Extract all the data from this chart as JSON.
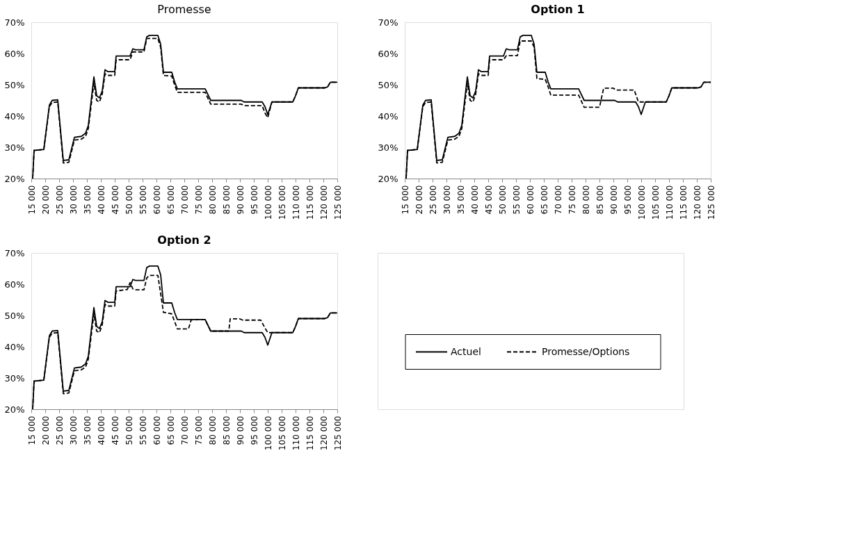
{
  "chart_data": [
    {
      "type": "line",
      "title": "Promesse",
      "marker": "none",
      "grid": false,
      "xlim": [
        15000,
        125000
      ],
      "xticks": [
        {
          "value": 15000,
          "label": "15 000"
        },
        {
          "value": 20000,
          "label": "20 000"
        },
        {
          "value": 25000,
          "label": "25 000"
        },
        {
          "value": 30000,
          "label": "30 000"
        },
        {
          "value": 35000,
          "label": "35 000"
        },
        {
          "value": 40000,
          "label": "40 000"
        },
        {
          "value": 45000,
          "label": "45 000"
        },
        {
          "value": 50000,
          "label": "50 000"
        },
        {
          "value": 55000,
          "label": "55 000"
        },
        {
          "value": 60000,
          "label": "60 000"
        },
        {
          "value": 65000,
          "label": "65 000"
        },
        {
          "value": 70000,
          "label": "70 000"
        },
        {
          "value": 75000,
          "label": "75 000"
        },
        {
          "value": 80000,
          "label": "80 000"
        },
        {
          "value": 85000,
          "label": "85 000"
        },
        {
          "value": 90000,
          "label": "90 000"
        },
        {
          "value": 95000,
          "label": "95 000"
        },
        {
          "value": 100000,
          "label": "100 000"
        },
        {
          "value": 105000,
          "label": "105 000"
        },
        {
          "value": 110000,
          "label": "110 000"
        },
        {
          "value": 115000,
          "label": "115 000"
        },
        {
          "value": 120000,
          "label": "120 000"
        },
        {
          "value": 125000,
          "label": "125 000"
        }
      ],
      "ylim": [
        20,
        70
      ],
      "yticks": [
        {
          "value": 20,
          "label": "20%"
        },
        {
          "value": 30,
          "label": "30%"
        },
        {
          "value": 40,
          "label": "40%"
        },
        {
          "value": 50,
          "label": "50%"
        },
        {
          "value": 60,
          "label": "60%"
        },
        {
          "value": 70,
          "label": "70%"
        }
      ],
      "series": [
        {
          "color": "#000000",
          "line_style": "solid",
          "x": [
            15500,
            16000,
            19500,
            21500,
            22500,
            24500,
            26500,
            28500,
            30500,
            33000,
            34500,
            35500,
            37500,
            38500,
            39500,
            40500,
            41500,
            42500,
            45000,
            45500,
            50500,
            51500,
            52500,
            55500,
            56500,
            57500,
            60500,
            61500,
            62500,
            65500,
            66500,
            67500,
            77500,
            79500,
            90500,
            91500,
            98000,
            99000,
            100000,
            101500,
            109000,
            110000,
            111000,
            120500,
            121500,
            122500,
            125000
          ],
          "values": [
            20,
            29,
            29.3,
            43.5,
            45,
            45.2,
            25.8,
            26,
            33.2,
            33.5,
            34.5,
            37,
            52.5,
            46.5,
            45.8,
            48,
            54.8,
            54.2,
            54.2,
            59.2,
            59.2,
            61.5,
            61.2,
            61.2,
            65.3,
            65.8,
            65.8,
            63,
            54,
            54,
            51,
            48.7,
            48.7,
            45,
            45,
            44.5,
            44.5,
            43,
            40.5,
            44.5,
            44.5,
            46.5,
            49,
            49,
            49.3,
            50.8,
            50.8
          ]
        },
        {
          "color": "#000000",
          "line_style": "dashed",
          "x": [
            15500,
            16000,
            19500,
            21500,
            22500,
            24500,
            26500,
            28500,
            30500,
            33000,
            34500,
            35500,
            37500,
            38500,
            39500,
            40500,
            41500,
            42500,
            45000,
            45500,
            50500,
            51500,
            55500,
            56500,
            60500,
            61500,
            62500,
            65500,
            66500,
            67500,
            77500,
            79500,
            90500,
            91500,
            98000,
            99000,
            100000,
            101500,
            109000,
            110000,
            111000,
            120500,
            121500,
            122500,
            125000
          ],
          "values": [
            20,
            29,
            29.3,
            43,
            44.3,
            44.5,
            25,
            25.2,
            32.3,
            32.6,
            33.5,
            36,
            50.5,
            45,
            44.5,
            47,
            53.5,
            53,
            53,
            58,
            58,
            60.5,
            60.5,
            64.8,
            64.8,
            62,
            53,
            52.8,
            50,
            47.6,
            47.6,
            43.8,
            43.8,
            43.3,
            43.3,
            41,
            39.5,
            44.5,
            44.5,
            46.5,
            49,
            49,
            49.3,
            50.8,
            50.8
          ]
        }
      ]
    },
    {
      "type": "line",
      "title": "Option 1",
      "marker": "none",
      "grid": false,
      "xlim": [
        15000,
        125000
      ],
      "xticks": [
        {
          "value": 15000,
          "label": "15 000"
        },
        {
          "value": 20000,
          "label": "20 000"
        },
        {
          "value": 25000,
          "label": "25 000"
        },
        {
          "value": 30000,
          "label": "30 000"
        },
        {
          "value": 35000,
          "label": "35 000"
        },
        {
          "value": 40000,
          "label": "40 000"
        },
        {
          "value": 45000,
          "label": "45 000"
        },
        {
          "value": 50000,
          "label": "50 000"
        },
        {
          "value": 55000,
          "label": "55 000"
        },
        {
          "value": 60000,
          "label": "60 000"
        },
        {
          "value": 65000,
          "label": "65 000"
        },
        {
          "value": 70000,
          "label": "70 000"
        },
        {
          "value": 75000,
          "label": "75 000"
        },
        {
          "value": 80000,
          "label": "80 000"
        },
        {
          "value": 85000,
          "label": "85 000"
        },
        {
          "value": 90000,
          "label": "90 000"
        },
        {
          "value": 95000,
          "label": "95 000"
        },
        {
          "value": 100000,
          "label": "100 000"
        },
        {
          "value": 105000,
          "label": "105 000"
        },
        {
          "value": 110000,
          "label": "110 000"
        },
        {
          "value": 115000,
          "label": "115 000"
        },
        {
          "value": 120000,
          "label": "120 000"
        },
        {
          "value": 125000,
          "label": "125 000"
        }
      ],
      "ylim": [
        20,
        70
      ],
      "yticks": [
        {
          "value": 20,
          "label": "20%"
        },
        {
          "value": 30,
          "label": "30%"
        },
        {
          "value": 40,
          "label": "40%"
        },
        {
          "value": 50,
          "label": "50%"
        },
        {
          "value": 60,
          "label": "60%"
        },
        {
          "value": 70,
          "label": "70%"
        }
      ],
      "series": [
        {
          "color": "#000000",
          "line_style": "solid",
          "x": [
            15500,
            16000,
            19500,
            21500,
            22500,
            24500,
            26500,
            28500,
            30500,
            33000,
            34500,
            35500,
            37500,
            38500,
            39500,
            40500,
            41500,
            42500,
            45000,
            45500,
            50500,
            51500,
            52500,
            55500,
            56500,
            57500,
            60500,
            61500,
            62500,
            65500,
            66500,
            67500,
            77500,
            79500,
            90500,
            91500,
            98000,
            99000,
            100000,
            101500,
            109000,
            110000,
            111000,
            120500,
            121500,
            122500,
            125000
          ],
          "values": [
            20,
            29,
            29.3,
            43.5,
            45,
            45.2,
            25.8,
            26,
            33.2,
            33.5,
            34.5,
            37,
            52.5,
            46.5,
            45.8,
            48,
            54.8,
            54.2,
            54.2,
            59.2,
            59.2,
            61.5,
            61.2,
            61.2,
            65.3,
            65.8,
            65.8,
            63,
            54,
            54,
            51,
            48.7,
            48.7,
            45,
            45,
            44.5,
            44.5,
            43,
            40.5,
            44.5,
            44.5,
            46.5,
            49,
            49,
            49.3,
            50.8,
            50.8
          ]
        },
        {
          "color": "#000000",
          "line_style": "dashed",
          "x": [
            15500,
            16000,
            19500,
            21500,
            22500,
            24500,
            26500,
            28500,
            30500,
            33000,
            34500,
            35500,
            37500,
            38500,
            39500,
            40500,
            41500,
            42500,
            45000,
            45500,
            50500,
            51500,
            55500,
            56500,
            60500,
            61500,
            62500,
            65500,
            66500,
            67500,
            77500,
            79500,
            85000,
            86500,
            90000,
            91000,
            97500,
            99000,
            101500,
            109000,
            110000,
            111000,
            120500,
            121500,
            122500,
            125000
          ],
          "values": [
            20,
            29,
            29.3,
            43,
            44.3,
            44.5,
            25,
            25.2,
            32.3,
            32.6,
            33.5,
            36,
            50.5,
            45,
            44.5,
            47,
            53.5,
            53,
            53,
            58,
            58,
            59.3,
            59.3,
            64,
            64,
            62,
            52,
            51.7,
            49.5,
            46.7,
            46.7,
            42.8,
            42.8,
            48.9,
            48.9,
            48.3,
            48.3,
            44.5,
            44.5,
            44.5,
            46.5,
            49,
            49,
            49.3,
            50.8,
            50.8
          ]
        }
      ]
    },
    {
      "type": "line",
      "title": "Option 2",
      "legend": "right",
      "marker": "none",
      "grid": false,
      "xlim": [
        15000,
        125000
      ],
      "xticks": [
        {
          "value": 15000,
          "label": "15 000"
        },
        {
          "value": 20000,
          "label": "20 000"
        },
        {
          "value": 25000,
          "label": "25 000"
        },
        {
          "value": 30000,
          "label": "30 000"
        },
        {
          "value": 35000,
          "label": "35 000"
        },
        {
          "value": 40000,
          "label": "40 000"
        },
        {
          "value": 45000,
          "label": "45 000"
        },
        {
          "value": 50000,
          "label": "50 000"
        },
        {
          "value": 55000,
          "label": "55 000"
        },
        {
          "value": 60000,
          "label": "60 000"
        },
        {
          "value": 65000,
          "label": "65 000"
        },
        {
          "value": 70000,
          "label": "70 000"
        },
        {
          "value": 75000,
          "label": "75 000"
        },
        {
          "value": 80000,
          "label": "80 000"
        },
        {
          "value": 85000,
          "label": "85 000"
        },
        {
          "value": 90000,
          "label": "90 000"
        },
        {
          "value": 95000,
          "label": "95 000"
        },
        {
          "value": 100000,
          "label": "100 000"
        },
        {
          "value": 105000,
          "label": "105 000"
        },
        {
          "value": 110000,
          "label": "110 000"
        },
        {
          "value": 115000,
          "label": "115 000"
        },
        {
          "value": 120000,
          "label": "120 000"
        },
        {
          "value": 125000,
          "label": "125 000"
        }
      ],
      "ylim": [
        20,
        70
      ],
      "yticks": [
        {
          "value": 20,
          "label": "20%"
        },
        {
          "value": 30,
          "label": "30%"
        },
        {
          "value": 40,
          "label": "40%"
        },
        {
          "value": 50,
          "label": "50%"
        },
        {
          "value": 60,
          "label": "60%"
        },
        {
          "value": 70,
          "label": "70%"
        }
      ],
      "series": [
        {
          "name": "Actuel",
          "color": "#000000",
          "line_style": "solid",
          "x": [
            15500,
            16000,
            19500,
            21500,
            22500,
            24500,
            26500,
            28500,
            30500,
            33000,
            34500,
            35500,
            37500,
            38500,
            39500,
            40500,
            41500,
            42500,
            45000,
            45500,
            50500,
            51500,
            52500,
            55500,
            56500,
            57500,
            60500,
            61500,
            62500,
            65500,
            66500,
            67500,
            77500,
            79500,
            90500,
            91500,
            98000,
            99000,
            100000,
            101500,
            109000,
            110000,
            111000,
            120500,
            121500,
            122500,
            125000
          ],
          "values": [
            20,
            29,
            29.3,
            43.5,
            45,
            45.2,
            25.8,
            26,
            33.2,
            33.5,
            34.5,
            37,
            52.5,
            46.5,
            45.8,
            48,
            54.8,
            54.2,
            54.2,
            59.2,
            59.2,
            61.5,
            61.2,
            61.2,
            65.3,
            65.8,
            65.8,
            63,
            54,
            54,
            51,
            48.7,
            48.7,
            45,
            45,
            44.5,
            44.5,
            43,
            40.5,
            44.5,
            44.5,
            46.5,
            49,
            49,
            49.3,
            50.8,
            50.8
          ]
        },
        {
          "name": "Promesse/Options",
          "color": "#000000",
          "line_style": "dashed",
          "x": [
            15500,
            16000,
            19500,
            21500,
            22500,
            24500,
            26500,
            28500,
            30500,
            33000,
            34500,
            35500,
            37500,
            38500,
            39500,
            40500,
            41500,
            42500,
            45000,
            45500,
            49500,
            50500,
            51500,
            52500,
            55500,
            56500,
            57500,
            60500,
            61500,
            62500,
            64500,
            65500,
            67500,
            71500,
            72500,
            77500,
            79500,
            86000,
            86500,
            90000,
            91000,
            97500,
            99000,
            100000,
            101500,
            109000,
            110000,
            111000,
            120500,
            121500,
            122500,
            125000
          ],
          "values": [
            20,
            29,
            29.3,
            43,
            44.3,
            44.5,
            25,
            25.2,
            32.3,
            32.6,
            33.5,
            36,
            50.5,
            45,
            44.5,
            47,
            53.5,
            53,
            53,
            57.8,
            58.3,
            60.5,
            58.5,
            58.2,
            58.2,
            62,
            62.8,
            62.8,
            57,
            51,
            50.7,
            50.5,
            45.7,
            45.7,
            48.6,
            48.7,
            45,
            45,
            48.9,
            48.9,
            48.5,
            48.5,
            46,
            44.5,
            44.5,
            44.5,
            46.5,
            49,
            49,
            49.3,
            50.8,
            50.8
          ]
        }
      ]
    }
  ]
}
